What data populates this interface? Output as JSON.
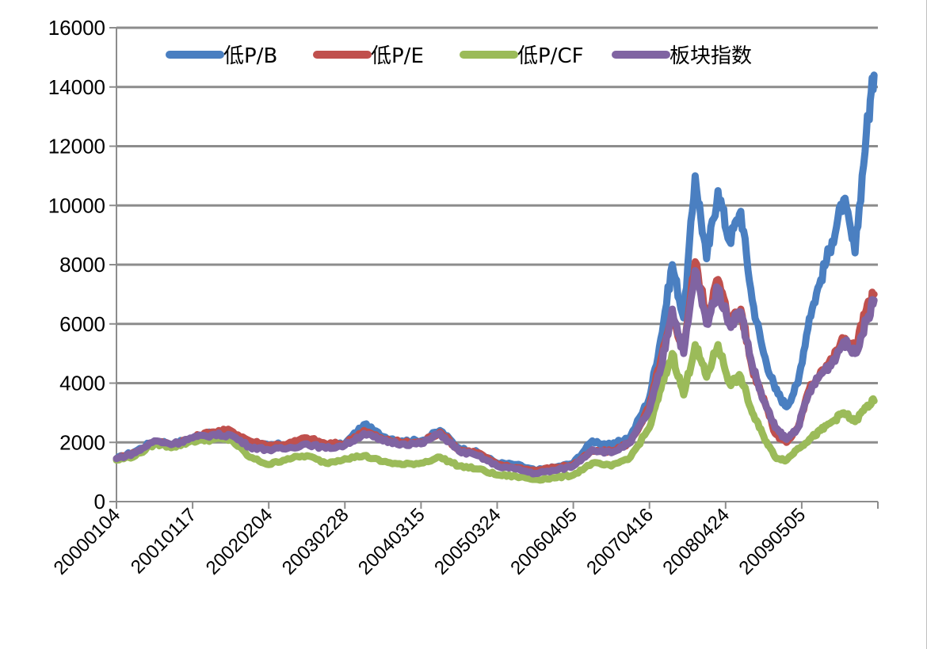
{
  "chart_data": {
    "type": "line",
    "title": "",
    "xlabel": "",
    "ylabel": "",
    "ylim": [
      0,
      16000
    ],
    "yticks": [
      0,
      2000,
      4000,
      6000,
      8000,
      10000,
      12000,
      14000,
      16000
    ],
    "xticks": [
      "20000104",
      "20010117",
      "20020204",
      "20030228",
      "20040315",
      "20050324",
      "20060405",
      "20070416",
      "20080424",
      "20090505"
    ],
    "grid": true,
    "legend_position": "top",
    "x": [
      2000.0,
      2000.25,
      2000.5,
      2000.75,
      2001.0,
      2001.25,
      2001.5,
      2001.75,
      2002.0,
      2002.25,
      2002.5,
      2002.75,
      2003.0,
      2003.25,
      2003.5,
      2003.75,
      2004.0,
      2004.25,
      2004.5,
      2004.75,
      2005.0,
      2005.25,
      2005.5,
      2005.75,
      2006.0,
      2006.25,
      2006.5,
      2006.75,
      2007.0,
      2007.15,
      2007.3,
      2007.45,
      2007.6,
      2007.75,
      2007.9,
      2008.05,
      2008.2,
      2008.35,
      2008.5,
      2008.65,
      2008.8,
      2008.95,
      2009.1,
      2009.25,
      2009.4,
      2009.55,
      2009.7,
      2009.85,
      2009.95
    ],
    "series": [
      {
        "name": "低P/B",
        "color": "#4a7fc1",
        "values": [
          1450,
          1700,
          2050,
          1950,
          2150,
          2300,
          2250,
          1950,
          1900,
          1950,
          2050,
          1850,
          1950,
          2600,
          2200,
          2050,
          2050,
          2400,
          1800,
          1650,
          1300,
          1250,
          1050,
          1150,
          1300,
          2050,
          1900,
          2200,
          3500,
          5500,
          8000,
          6200,
          11000,
          8200,
          10500,
          8800,
          9800,
          6800,
          5000,
          3800,
          3200,
          4000,
          6200,
          7500,
          8800,
          10200,
          8400,
          12500,
          14400
        ]
      },
      {
        "name": "低P/E",
        "color": "#c0504d",
        "values": [
          1450,
          1650,
          2000,
          1950,
          2150,
          2350,
          2400,
          2050,
          1900,
          1950,
          2150,
          1950,
          1950,
          2400,
          2100,
          2000,
          2000,
          2350,
          1750,
          1650,
          1250,
          1150,
          1050,
          1150,
          1250,
          1700,
          1700,
          2000,
          3200,
          4800,
          6200,
          5200,
          8100,
          6300,
          7500,
          6100,
          6500,
          4500,
          3500,
          2300,
          2000,
          2500,
          3800,
          4400,
          4800,
          5500,
          5200,
          6500,
          7000
        ]
      },
      {
        "name": "低P/CF",
        "color": "#9bbb59",
        "values": [
          1400,
          1550,
          1950,
          1850,
          2050,
          2100,
          2100,
          1500,
          1250,
          1450,
          1550,
          1300,
          1450,
          1550,
          1350,
          1250,
          1300,
          1500,
          1200,
          1100,
          900,
          850,
          750,
          800,
          900,
          1300,
          1200,
          1500,
          2500,
          3800,
          5000,
          3600,
          5300,
          4200,
          5300,
          4000,
          4200,
          3000,
          2200,
          1500,
          1400,
          1800,
          2100,
          2400,
          2700,
          3000,
          2700,
          3200,
          3400
        ]
      },
      {
        "name": "板块指数",
        "color": "#8064a2",
        "values": [
          1450,
          1650,
          2050,
          1950,
          2150,
          2250,
          2250,
          1850,
          1750,
          1800,
          1950,
          1800,
          1900,
          2300,
          2050,
          1950,
          1950,
          2300,
          1700,
          1550,
          1200,
          1100,
          950,
          1050,
          1200,
          1750,
          1650,
          2000,
          3100,
          4500,
          6500,
          5000,
          7800,
          6000,
          7200,
          6000,
          6400,
          4600,
          3400,
          2500,
          2100,
          2500,
          3700,
          4300,
          4700,
          5400,
          5000,
          6100,
          6800
        ]
      }
    ]
  }
}
